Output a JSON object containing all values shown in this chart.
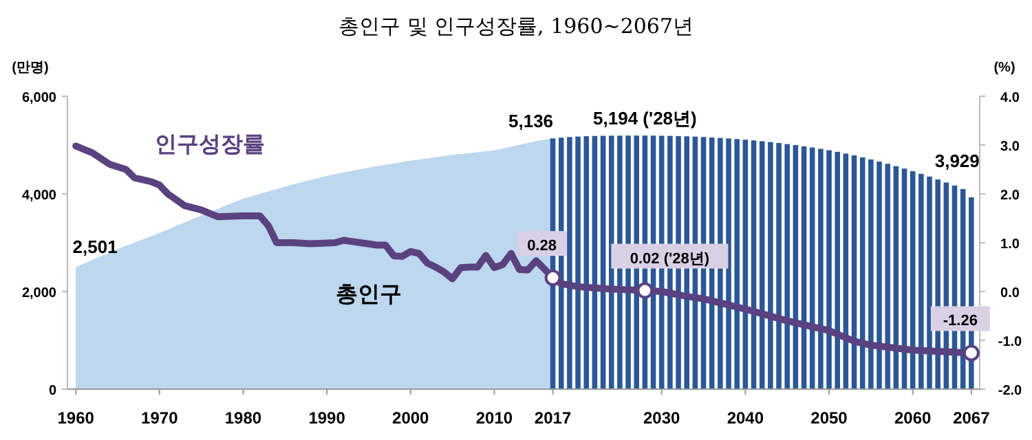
{
  "chart_data": {
    "type": "bar",
    "title": "총인구 및 인구성장률, 1960~2067년",
    "ylabel": "(만명)",
    "y2label": "(%)",
    "xlim": [
      1959,
      2068
    ],
    "xticks": [
      1960,
      1970,
      1980,
      1990,
      2000,
      2010,
      2017,
      2030,
      2040,
      2050,
      2060,
      2067
    ],
    "ylim": [
      0,
      6000
    ],
    "yticks": [
      0,
      {
        "value": 2000,
        "label": "2,000"
      },
      {
        "value": 4000,
        "label": "4,000"
      },
      {
        "value": 6000,
        "label": "6,000"
      }
    ],
    "y2lim": [
      -2,
      4
    ],
    "y2ticks": [
      {
        "value": -2,
        "label": "-2.0"
      },
      {
        "value": -1,
        "label": "-1.0"
      },
      {
        "value": 0,
        "label": "0.0"
      },
      {
        "value": 1,
        "label": "1.0"
      },
      {
        "value": 2,
        "label": "2.0"
      },
      {
        "value": 3,
        "label": "3.0"
      },
      {
        "value": 4,
        "label": "4.0"
      }
    ],
    "legend": false,
    "grid": false,
    "series": [
      {
        "name": "총인구",
        "type": "area",
        "color": "#bdd7ee",
        "x": [
          1960,
          1965,
          1970,
          1975,
          1980,
          1985,
          1990,
          1995,
          2000,
          2005,
          2010,
          2015,
          2017
        ],
        "values": [
          2501,
          2870,
          3200,
          3560,
          3900,
          4150,
          4370,
          4540,
          4680,
          4800,
          4890,
          5080,
          5136
        ],
        "value_labels": [
          "2,501",
          null,
          null,
          null,
          null,
          null,
          null,
          null,
          null,
          null,
          null,
          null,
          "5,136"
        ]
      },
      {
        "color": "#2b5797",
        "x": [
          2017,
          2018,
          2019,
          2020,
          2021,
          2022,
          2023,
          2024,
          2025,
          2026,
          2027,
          2028,
          2029,
          2030,
          2031,
          2032,
          2033,
          2034,
          2035,
          2036,
          2037,
          2038,
          2039,
          2040,
          2041,
          2042,
          2043,
          2044,
          2045,
          2046,
          2047,
          2048,
          2049,
          2050,
          2051,
          2052,
          2053,
          2054,
          2055,
          2056,
          2057,
          2058,
          2059,
          2060,
          2061,
          2062,
          2063,
          2064,
          2065,
          2066,
          2067
        ],
        "values": [
          5136,
          5152,
          5164,
          5174,
          5181,
          5186,
          5190,
          5192,
          5193,
          5194,
          5194,
          5194,
          5193,
          5191,
          5188,
          5184,
          5179,
          5173,
          5165,
          5156,
          5146,
          5135,
          5123,
          5110,
          5095,
          5079,
          5061,
          5042,
          5021,
          4999,
          4975,
          4950,
          4923,
          4895,
          4862,
          4826,
          4788,
          4748,
          4706,
          4662,
          4616,
          4568,
          4518,
          4466,
          4411,
          4354,
          4295,
          4234,
          4170,
          4100,
          3929
        ],
        "value_labels": [
          null,
          null,
          null,
          null,
          null,
          null,
          null,
          null,
          null,
          null,
          null,
          "5,194 ('28년)",
          null,
          null,
          null,
          null,
          null,
          null,
          null,
          null,
          null,
          null,
          null,
          null,
          null,
          null,
          null,
          null,
          null,
          null,
          null,
          null,
          null,
          null,
          null,
          null,
          null,
          null,
          null,
          null,
          null,
          null,
          null,
          null,
          null,
          null,
          null,
          null,
          null,
          null,
          "3,929"
        ]
      },
      {
        "name": "인구성장률",
        "type": "line",
        "axis": "y2",
        "color": "#5a4180",
        "x": [
          1960,
          1962,
          1964,
          1966,
          1967,
          1969,
          1970,
          1971,
          1973,
          1975,
          1977,
          1980,
          1982,
          1983,
          1984,
          1986,
          1988,
          1991,
          1992,
          1994,
          1996,
          1997,
          1998,
          1999,
          2000,
          2001,
          2002,
          2003,
          2004,
          2005,
          2006,
          2007,
          2008,
          2009,
          2010,
          2011,
          2012,
          2013,
          2014,
          2015,
          2016,
          2017,
          2018,
          2020,
          2024,
          2028,
          2030,
          2033,
          2035,
          2040,
          2045,
          2050,
          2053,
          2055,
          2060,
          2067
        ],
        "values": [
          2.98,
          2.84,
          2.61,
          2.5,
          2.33,
          2.25,
          2.18,
          2.0,
          1.76,
          1.67,
          1.53,
          1.55,
          1.55,
          1.35,
          1.0,
          1.0,
          0.98,
          1.0,
          1.05,
          1.0,
          0.95,
          0.95,
          0.73,
          0.72,
          0.82,
          0.78,
          0.58,
          0.5,
          0.4,
          0.26,
          0.49,
          0.5,
          0.5,
          0.74,
          0.49,
          0.55,
          0.78,
          0.45,
          0.44,
          0.63,
          0.46,
          0.28,
          0.16,
          0.1,
          0.05,
          0.02,
          0.0,
          -0.1,
          -0.15,
          -0.36,
          -0.6,
          -0.8,
          -1.02,
          -1.1,
          -1.2,
          -1.26
        ],
        "value_labels": [
          null,
          null,
          null,
          null,
          null,
          null,
          null,
          null,
          null,
          null,
          null,
          null,
          null,
          null,
          null,
          null,
          null,
          null,
          null,
          null,
          null,
          null,
          null,
          null,
          null,
          null,
          null,
          null,
          null,
          null,
          null,
          null,
          null,
          null,
          null,
          null,
          null,
          null,
          null,
          null,
          null,
          "0.28",
          null,
          null,
          null,
          "0.02 ('28년)",
          null,
          null,
          null,
          null,
          null,
          null,
          null,
          null,
          null,
          "-1.26"
        ]
      }
    ]
  }
}
